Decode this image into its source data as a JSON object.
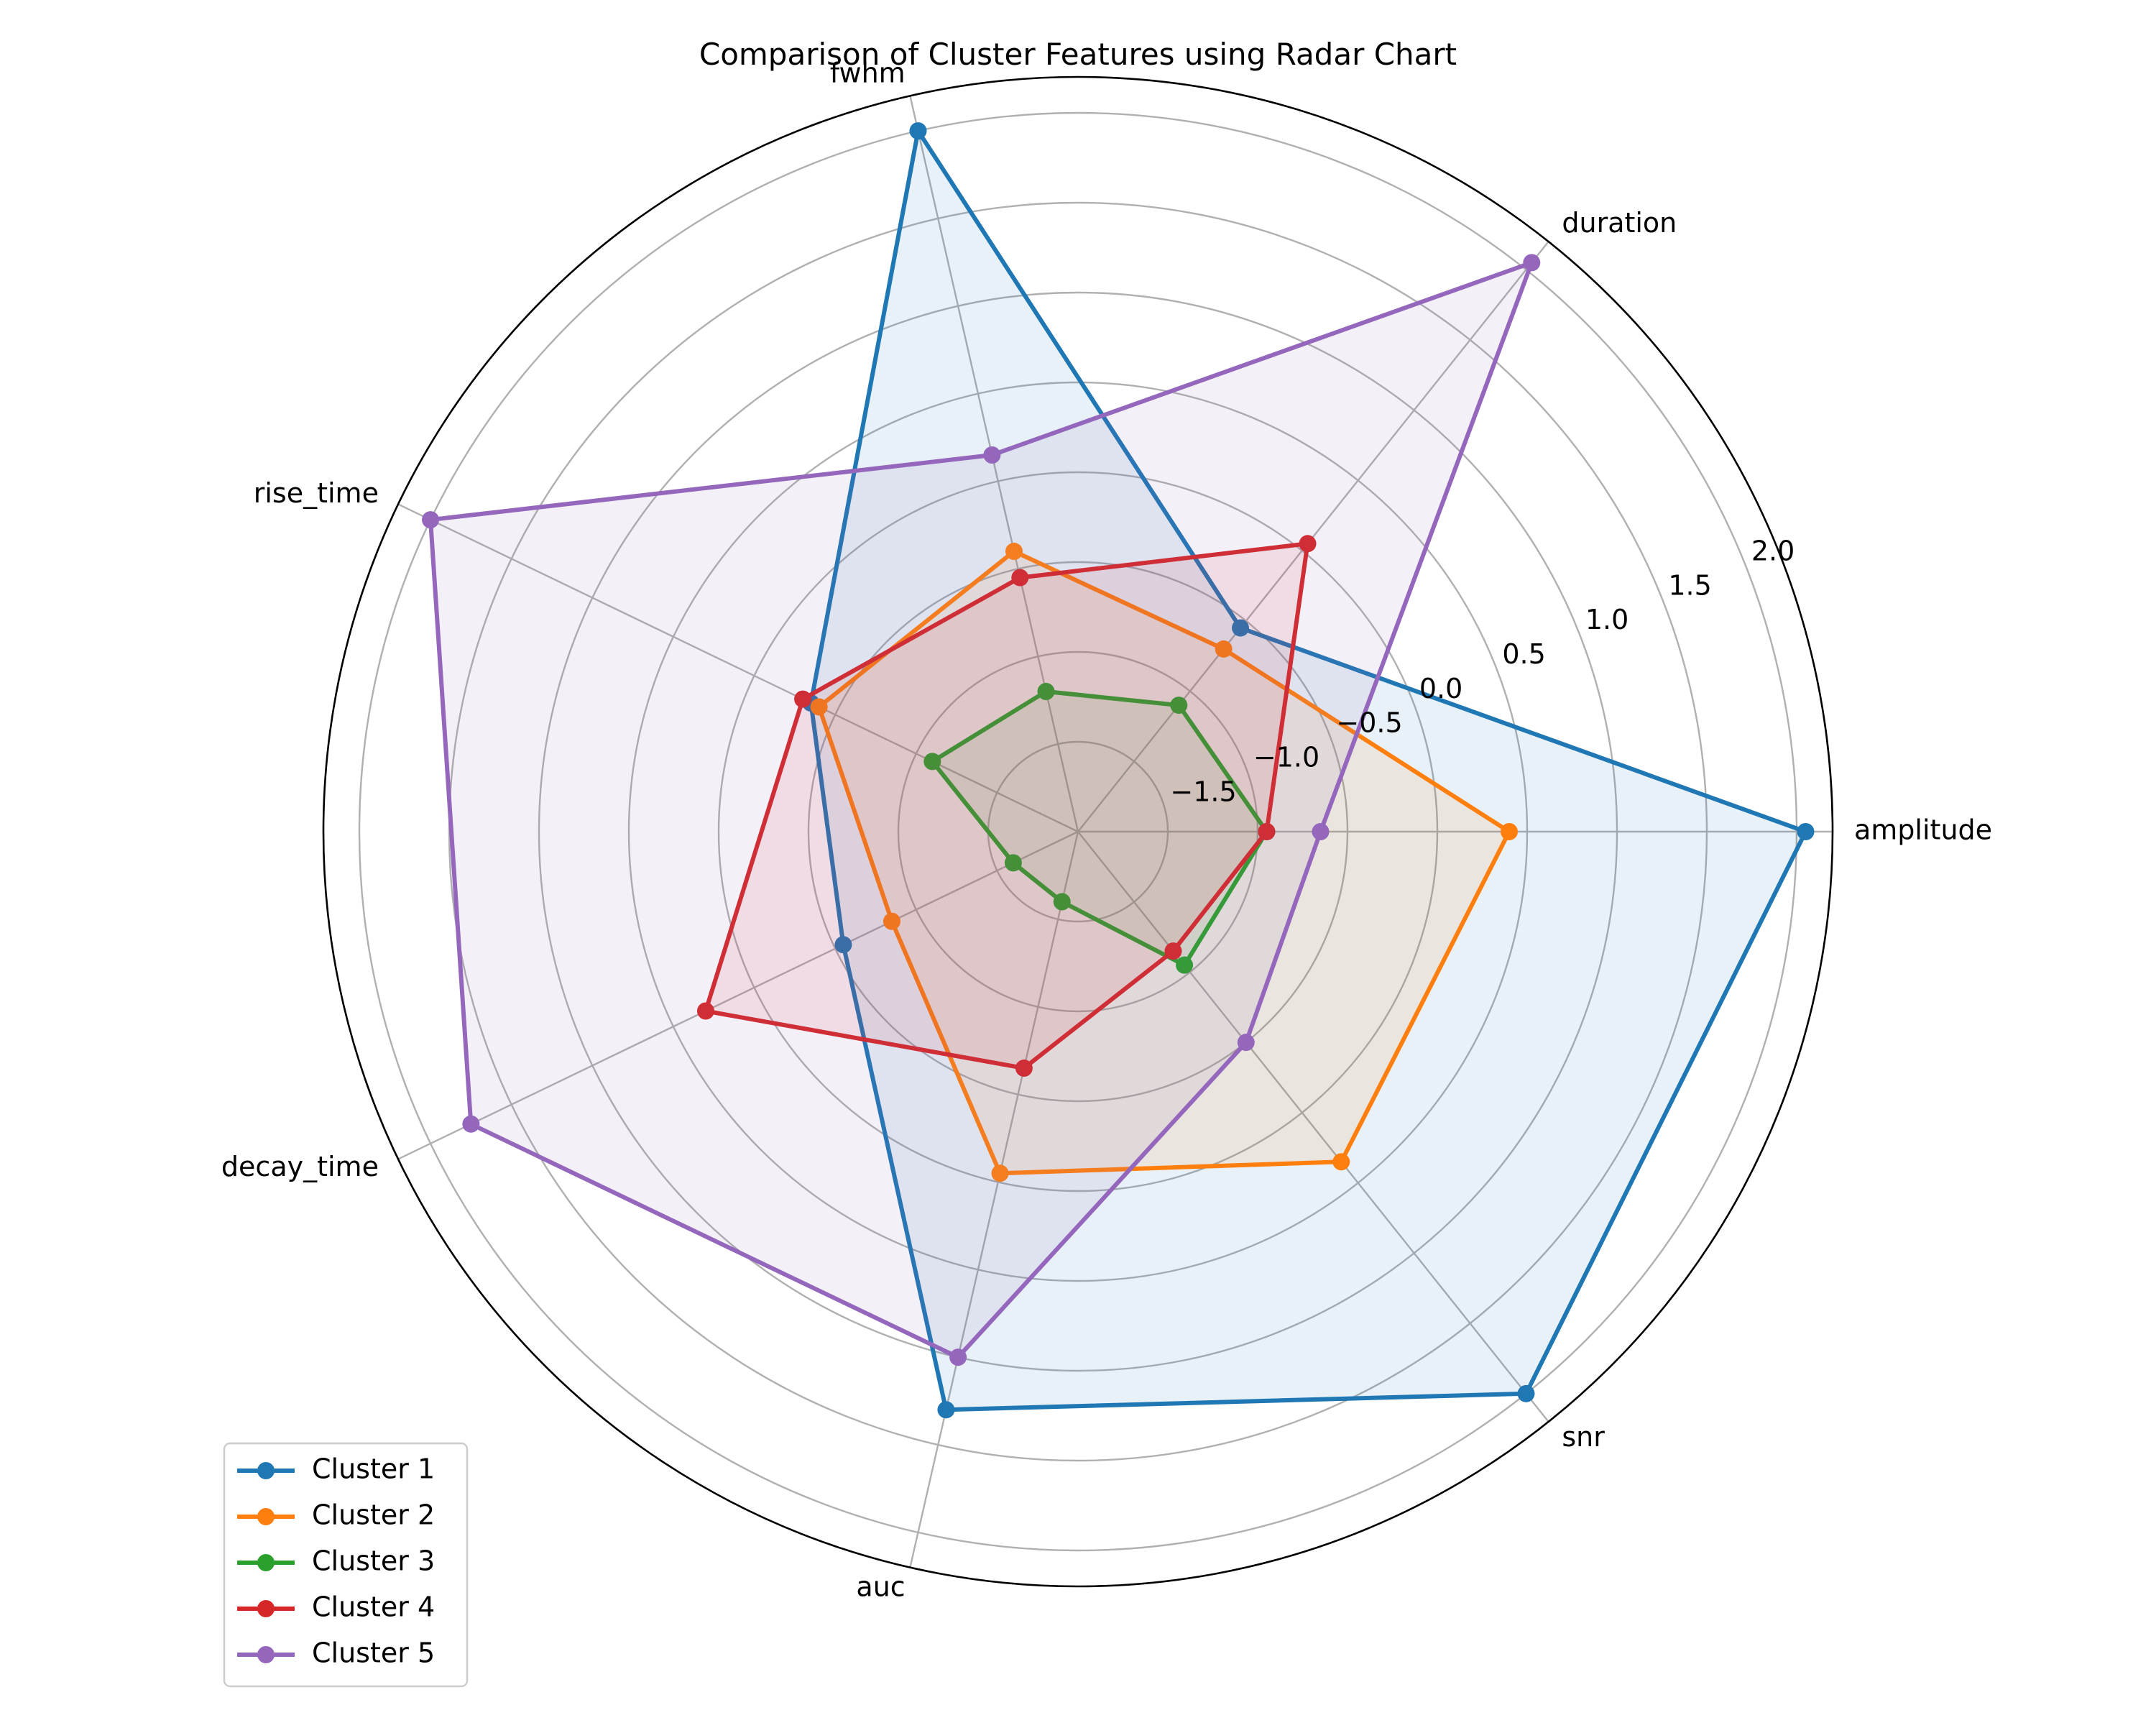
{
  "chart_data": {
    "type": "radar",
    "title": "Comparison of Cluster Features using Radar Chart",
    "axes": [
      "amplitude",
      "duration",
      "fwhm",
      "rise_time",
      "decay_time",
      "auc",
      "snr"
    ],
    "radial_range": [
      -2.0,
      2.2
    ],
    "radial_ticks": [
      -1.5,
      -1.0,
      -0.5,
      0.0,
      0.5,
      1.0,
      1.5,
      2.0
    ],
    "radial_tick_labels": [
      "−1.5",
      "−1.0",
      "−0.5",
      "0.0",
      "0.5",
      "1.0",
      "1.5",
      "2.0"
    ],
    "grid": true,
    "legend_position": "lower-left",
    "series": [
      {
        "name": "Cluster 1",
        "color": "#1f77b4",
        "values": [
          2.05,
          -0.55,
          2.0,
          -0.35,
          -0.55,
          1.3,
          2.0
        ]
      },
      {
        "name": "Cluster 2",
        "color": "#ff7f0e",
        "values": [
          0.4,
          -0.7,
          -0.4,
          -0.4,
          -0.85,
          -0.05,
          0.35
        ]
      },
      {
        "name": "Cluster 3",
        "color": "#2ca02c",
        "values": [
          -0.95,
          -1.1,
          -1.2,
          -1.1,
          -1.6,
          -1.6,
          -1.05
        ]
      },
      {
        "name": "Cluster 4",
        "color": "#d62728",
        "values": [
          -0.95,
          0.05,
          -0.55,
          -0.3,
          0.3,
          -0.65,
          -1.15
        ]
      },
      {
        "name": "Cluster 5",
        "color": "#9467bd",
        "values": [
          -0.65,
          2.05,
          0.15,
          2.0,
          1.75,
          1.0,
          -0.5
        ]
      }
    ]
  }
}
